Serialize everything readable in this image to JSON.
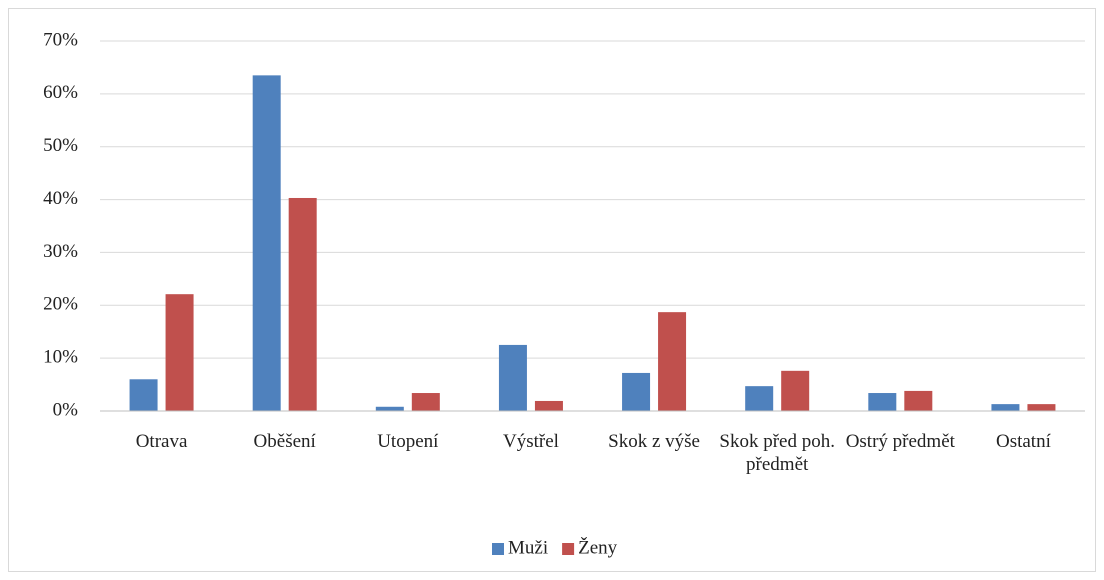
{
  "chart_data": {
    "type": "bar",
    "categories": [
      "Otrava",
      "Oběšení",
      "Utopení",
      "Výstřel",
      "Skok z výše",
      "Skok před poh. předmět",
      "Ostrý předmět",
      "Ostatní"
    ],
    "series": [
      {
        "name": "Muži",
        "color": "#4f81bd",
        "values": [
          6.0,
          63.5,
          0.8,
          12.5,
          7.2,
          4.7,
          3.4,
          1.3
        ]
      },
      {
        "name": "Ženy",
        "color": "#c0504d",
        "values": [
          22.1,
          40.3,
          3.4,
          1.9,
          18.7,
          7.6,
          3.8,
          1.3
        ]
      }
    ],
    "ylim": [
      0,
      70
    ],
    "yticks": [
      {
        "value": 0,
        "label": "0%"
      },
      {
        "value": 10,
        "label": "10%"
      },
      {
        "value": 20,
        "label": "20%"
      },
      {
        "value": 30,
        "label": "30%"
      },
      {
        "value": 40,
        "label": "40%"
      },
      {
        "value": 50,
        "label": "50%"
      },
      {
        "value": 60,
        "label": "60%"
      },
      {
        "value": 70,
        "label": "70%"
      }
    ],
    "grid": true,
    "legend": "bottom"
  }
}
